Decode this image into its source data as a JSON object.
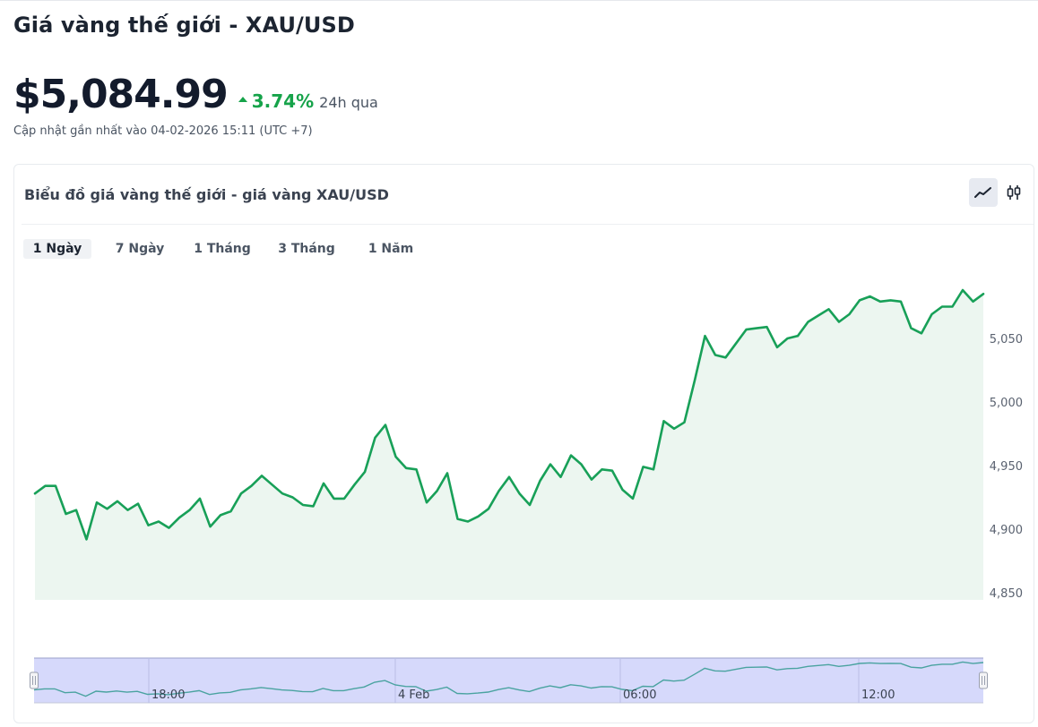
{
  "page": {
    "title": "Giá vàng thế giới - XAU/USD",
    "price": "$5,084.99",
    "change": "3.74%",
    "change_suffix": "24h qua",
    "updated": "Cập nhật gần nhất vào 04-02-2026 15:11 (UTC +7)"
  },
  "card": {
    "title": "Biểu đồ giá vàng thế giới - giá vàng XAU/USD",
    "chart_types": [
      {
        "name": "line-chart-icon",
        "active": true
      },
      {
        "name": "candlestick-icon",
        "active": false
      }
    ],
    "tabs": [
      {
        "label": "1 Ngày",
        "active": true
      },
      {
        "label": "7 Ngày",
        "active": false
      },
      {
        "label": "1 Tháng",
        "active": false
      },
      {
        "label": "3 Tháng",
        "active": false
      },
      {
        "label": "1 Năm",
        "active": false
      }
    ]
  },
  "colors": {
    "accent_green": "#16a34a",
    "line": "#18a058",
    "area": "#ecf6f0",
    "navigator_fill": "#d6d9fb",
    "navigator_line": "#4aa3a0"
  },
  "chart_data": {
    "type": "area",
    "y_ticks": [
      "5,050",
      "5,000",
      "4,950",
      "4,900",
      "4,850"
    ],
    "y_tick_values": [
      5050,
      5000,
      4950,
      4900,
      4850
    ],
    "ylim": [
      4850,
      5095
    ],
    "navigator_labels": [
      "18:00",
      "4 Feb",
      "06:00",
      "12:00"
    ],
    "values": [
      4928,
      4934,
      4934,
      4912,
      4915,
      4892,
      4921,
      4916,
      4922,
      4915,
      4920,
      4903,
      4906,
      4901,
      4909,
      4915,
      4924,
      4902,
      4911,
      4914,
      4928,
      4934,
      4942,
      4935,
      4928,
      4925,
      4919,
      4918,
      4936,
      4924,
      4924,
      4935,
      4945,
      4972,
      4982,
      4957,
      4948,
      4947,
      4921,
      4930,
      4944,
      4908,
      4906,
      4910,
      4916,
      4930,
      4941,
      4928,
      4919,
      4938,
      4951,
      4941,
      4958,
      4951,
      4939,
      4947,
      4946,
      4931,
      4924,
      4949,
      4947,
      4985,
      4979,
      4984,
      5017,
      5052,
      5037,
      5035,
      5046,
      5057,
      5058,
      5059,
      5043,
      5050,
      5052,
      5063,
      5068,
      5073,
      5063,
      5069,
      5080,
      5083,
      5079,
      5080,
      5079,
      5058,
      5054,
      5069,
      5075,
      5075,
      5088,
      5079,
      5085
    ]
  }
}
